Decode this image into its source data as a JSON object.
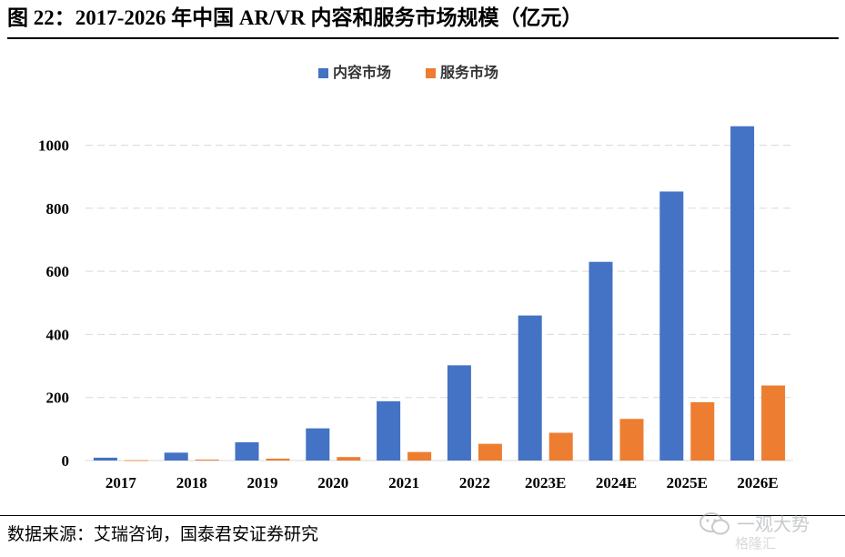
{
  "figure": {
    "title": "图 22：2017-2026 年中国 AR/VR 内容和服务市场规模（亿元）",
    "source": "数据来源：艾瑞咨询，国泰君安证券研究"
  },
  "watermark": {
    "line1": "一观大势",
    "line2": "格隆汇"
  },
  "chart_data": {
    "type": "bar",
    "title": "",
    "xlabel": "",
    "ylabel": "",
    "categories": [
      "2017",
      "2018",
      "2019",
      "2020",
      "2021",
      "2022",
      "2023E",
      "2024E",
      "2025E",
      "2026E"
    ],
    "series": [
      {
        "name": "内容市场",
        "color": "#4472C4",
        "values": [
          9,
          25,
          58,
          102,
          188,
          302,
          460,
          630,
          853,
          1060
        ]
      },
      {
        "name": "服务市场",
        "color": "#ED7D31",
        "values": [
          1,
          3,
          6,
          11,
          27,
          53,
          88,
          132,
          185,
          238
        ]
      }
    ],
    "ylim": [
      0,
      1100
    ],
    "yticks": [
      0,
      200,
      400,
      600,
      800,
      1000
    ],
    "grid": true,
    "grid_style": "dashed",
    "legend_position": "top-center"
  }
}
